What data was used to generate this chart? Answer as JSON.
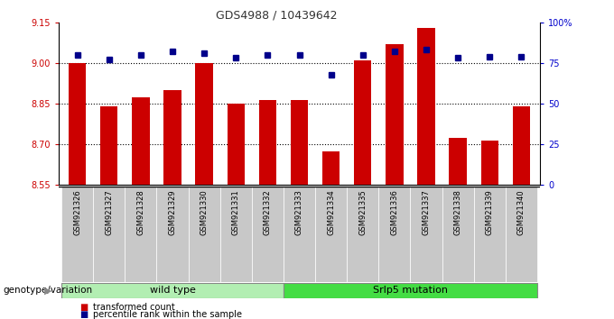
{
  "title": "GDS4988 / 10439642",
  "samples": [
    "GSM921326",
    "GSM921327",
    "GSM921328",
    "GSM921329",
    "GSM921330",
    "GSM921331",
    "GSM921332",
    "GSM921333",
    "GSM921334",
    "GSM921335",
    "GSM921336",
    "GSM921337",
    "GSM921338",
    "GSM921339",
    "GSM921340"
  ],
  "transformed_counts": [
    9.0,
    8.84,
    8.875,
    8.9,
    9.0,
    8.85,
    8.865,
    8.865,
    8.675,
    9.01,
    9.07,
    9.13,
    8.725,
    8.715,
    8.84
  ],
  "percentile_ranks": [
    80,
    77,
    80,
    82,
    81,
    78,
    80,
    80,
    68,
    80,
    82,
    83,
    78,
    79,
    79
  ],
  "ylim": [
    8.55,
    9.15
  ],
  "yticks": [
    8.55,
    8.7,
    8.85,
    9.0,
    9.15
  ],
  "right_yticks": [
    0,
    25,
    50,
    75,
    100
  ],
  "bar_color": "#CC0000",
  "dot_color": "#00008B",
  "group1_label": "wild type",
  "group2_label": "Srlp5 mutation",
  "group1_count": 7,
  "group2_count": 8,
  "genotype_label": "genotype/variation",
  "legend_bar_label": "transformed count",
  "legend_dot_label": "percentile rank within the sample",
  "tick_label_color": "#CC0000",
  "right_tick_color": "#0000CC",
  "xticklabel_bg": "#C8C8C8",
  "group1_color": "#B2EEB2",
  "group2_color": "#44DD44"
}
